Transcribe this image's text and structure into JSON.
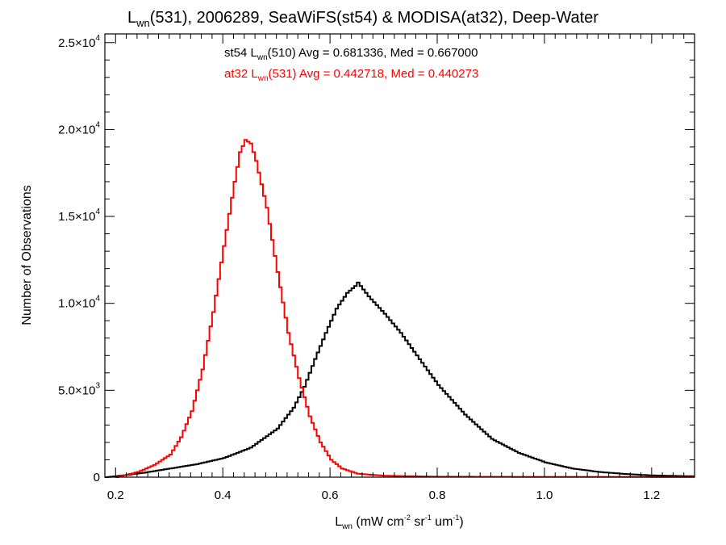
{
  "title": {
    "main": "L",
    "sub": "wn",
    "rest": "(531), 2006289, SeaWiFS(st54) & MODISA(at32), Deep-Water"
  },
  "stats": [
    {
      "prefix": "st54 L",
      "sub": "wn",
      "rest": "(510) Avg = 0.681336, Med = 0.667000",
      "color": "#000000"
    },
    {
      "prefix": "at32 L",
      "sub": "wn",
      "rest": "(531) Avg = 0.442718, Med = 0.440273",
      "color": "#ff0000"
    }
  ],
  "axes": {
    "ylabel": "Number of Observations",
    "xlabel": {
      "L": "L",
      "wn": "wn",
      "a": " (mW cm",
      "b": "-2",
      "c": " sr",
      "d": "-1",
      "e": " um",
      "f": "-1",
      "g": ")"
    },
    "ytick_labels": [
      {
        "value": 0,
        "mant": "0",
        "exp": ""
      },
      {
        "value": 5000,
        "mant": "5.0×10",
        "exp": "3"
      },
      {
        "value": 10000,
        "mant": "1.0×10",
        "exp": "4"
      },
      {
        "value": 15000,
        "mant": "1.5×10",
        "exp": "4"
      },
      {
        "value": 20000,
        "mant": "2.0×10",
        "exp": "4"
      },
      {
        "value": 25000,
        "mant": "2.5×10",
        "exp": "4"
      }
    ],
    "xtick_labels": [
      "0.2",
      "0.4",
      "0.6",
      "0.8",
      "1.0",
      "1.2"
    ]
  },
  "chart_data": {
    "type": "line",
    "style": "histogram-step",
    "xlim": [
      0.18,
      1.28
    ],
    "ylim": [
      0,
      25500
    ],
    "xticks": [
      0.2,
      0.4,
      0.6,
      0.8,
      1.0,
      1.2
    ],
    "yticks": [
      0,
      5000,
      10000,
      15000,
      20000,
      25000
    ],
    "grid": false,
    "series": [
      {
        "name": "st54",
        "color": "#000000",
        "points": [
          [
            0.18,
            0
          ],
          [
            0.2,
            60
          ],
          [
            0.25,
            250
          ],
          [
            0.3,
            500
          ],
          [
            0.35,
            750
          ],
          [
            0.4,
            1100
          ],
          [
            0.45,
            1700
          ],
          [
            0.5,
            2800
          ],
          [
            0.53,
            4000
          ],
          [
            0.55,
            5200
          ],
          [
            0.57,
            6800
          ],
          [
            0.59,
            8300
          ],
          [
            0.61,
            9700
          ],
          [
            0.63,
            10600
          ],
          [
            0.645,
            11000
          ],
          [
            0.65,
            11200
          ],
          [
            0.67,
            10400
          ],
          [
            0.7,
            9400
          ],
          [
            0.73,
            8300
          ],
          [
            0.76,
            7000
          ],
          [
            0.8,
            5300
          ],
          [
            0.85,
            3600
          ],
          [
            0.9,
            2200
          ],
          [
            0.95,
            1400
          ],
          [
            1.0,
            850
          ],
          [
            1.05,
            500
          ],
          [
            1.1,
            300
          ],
          [
            1.15,
            180
          ],
          [
            1.2,
            100
          ],
          [
            1.28,
            50
          ]
        ]
      },
      {
        "name": "at32",
        "color": "#ff0000",
        "points": [
          [
            0.2,
            0
          ],
          [
            0.24,
            300
          ],
          [
            0.27,
            700
          ],
          [
            0.3,
            1300
          ],
          [
            0.32,
            2300
          ],
          [
            0.34,
            3800
          ],
          [
            0.36,
            6200
          ],
          [
            0.38,
            9500
          ],
          [
            0.4,
            13300
          ],
          [
            0.42,
            17000
          ],
          [
            0.43,
            18700
          ],
          [
            0.44,
            19400
          ],
          [
            0.45,
            19200
          ],
          [
            0.46,
            18200
          ],
          [
            0.48,
            15500
          ],
          [
            0.5,
            11800
          ],
          [
            0.52,
            8300
          ],
          [
            0.54,
            5700
          ],
          [
            0.56,
            3500
          ],
          [
            0.58,
            2000
          ],
          [
            0.6,
            1000
          ],
          [
            0.62,
            500
          ],
          [
            0.65,
            200
          ],
          [
            0.7,
            80
          ],
          [
            0.8,
            30
          ],
          [
            0.95,
            20
          ],
          [
            1.28,
            15
          ]
        ]
      }
    ]
  }
}
